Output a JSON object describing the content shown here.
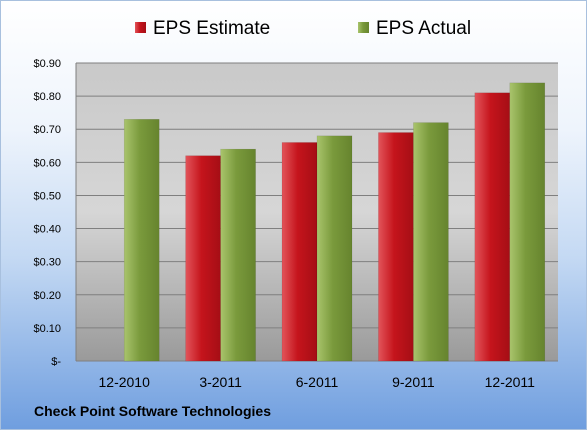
{
  "footer": {
    "company": "Check Point Software Technologies"
  },
  "colors": {
    "estimate": "#c5141c",
    "estimate_light": "#e2545a",
    "actual": "#7a9a3c",
    "actual_light": "#a9c46c"
  },
  "chart_data": {
    "type": "bar",
    "categories": [
      "12-2010",
      "3-2011",
      "6-2011",
      "9-2011",
      "12-2011"
    ],
    "series": [
      {
        "name": "EPS Estimate",
        "values": [
          null,
          0.62,
          0.66,
          0.69,
          0.81
        ]
      },
      {
        "name": "EPS Actual",
        "values": [
          0.73,
          0.64,
          0.68,
          0.72,
          0.84
        ]
      }
    ],
    "ylim": [
      0,
      0.9
    ],
    "y_ticks": [
      0,
      0.1,
      0.2,
      0.3,
      0.4,
      0.5,
      0.6,
      0.7,
      0.8,
      0.9
    ],
    "y_tick_labels": [
      "$-",
      "$0.10",
      "$0.20",
      "$0.30",
      "$0.40",
      "$0.50",
      "$0.60",
      "$0.70",
      "$0.80",
      "$0.90"
    ],
    "grid": true,
    "legend_position": "top"
  }
}
